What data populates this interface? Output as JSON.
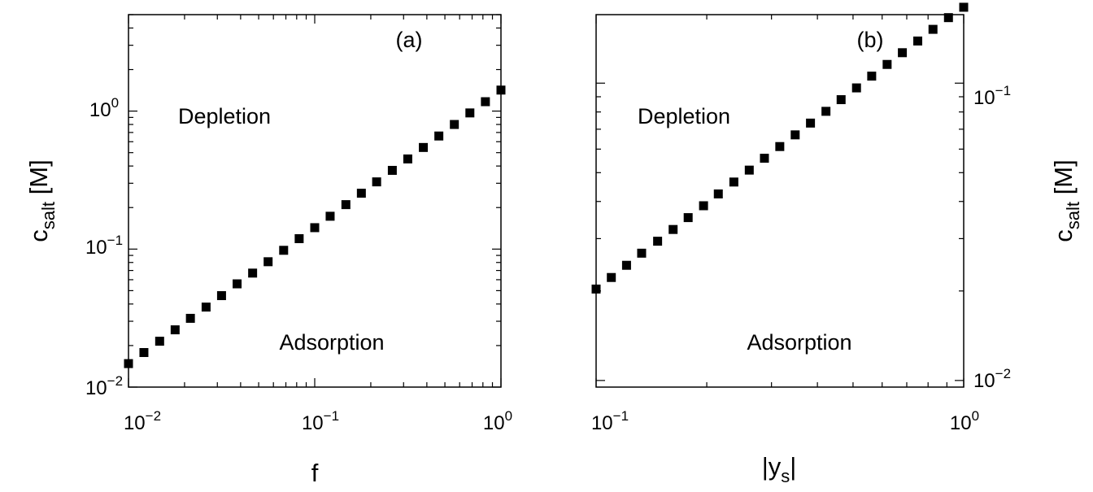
{
  "chart_data": [
    {
      "type": "scatter",
      "panel_label": "(a)",
      "xlabel": "f",
      "ylabel": "c_salt [M]",
      "ylabel_parts": {
        "main": "c",
        "sub": "salt",
        "unit": " [M]"
      },
      "x_scale": "log",
      "y_scale": "log",
      "xlim": [
        0.01,
        1
      ],
      "ylim": [
        0.01,
        5
      ],
      "x_ticks": [
        {
          "base": "10",
          "exp": "−2"
        },
        {
          "base": "10",
          "exp": "−1"
        },
        {
          "base": "10",
          "exp": "0"
        }
      ],
      "y_ticks": [
        {
          "base": "10",
          "exp": "−2"
        },
        {
          "base": "10",
          "exp": "−1"
        },
        {
          "base": "10",
          "exp": "0"
        }
      ],
      "annotations": [
        "Depletion",
        "Adsorption"
      ],
      "grid": false,
      "marker": "square",
      "color": "#000000",
      "x": [
        0.01,
        0.0121,
        0.0147,
        0.0178,
        0.0215,
        0.0261,
        0.0316,
        0.0383,
        0.0464,
        0.0562,
        0.0681,
        0.0825,
        0.1,
        0.121,
        0.147,
        0.178,
        0.215,
        0.261,
        0.316,
        0.383,
        0.464,
        0.562,
        0.681,
        0.825,
        1.0
      ],
      "y": [
        0.0148,
        0.0178,
        0.0215,
        0.026,
        0.0315,
        0.038,
        0.046,
        0.056,
        0.067,
        0.081,
        0.098,
        0.119,
        0.143,
        0.173,
        0.21,
        0.254,
        0.307,
        0.372,
        0.45,
        0.545,
        0.66,
        0.8,
        0.97,
        1.17,
        1.42
      ]
    },
    {
      "type": "scatter",
      "panel_label": "(b)",
      "xlabel": "|y_s|",
      "xlabel_parts": {
        "left": "|y",
        "sub": "s",
        "right": "|"
      },
      "ylabel": "c_salt [M]",
      "ylabel_parts": {
        "main": "c",
        "sub": "salt",
        "unit": " [M]"
      },
      "x_scale": "log",
      "y_scale": "log",
      "y_axis_side": "right",
      "xlim": [
        0.1,
        1
      ],
      "ylim": [
        0.0095,
        0.17
      ],
      "x_ticks": [
        {
          "base": "10",
          "exp": "−1"
        },
        {
          "base": "10",
          "exp": "0"
        }
      ],
      "y_ticks": [
        {
          "base": "10",
          "exp": "−2"
        },
        {
          "base": "10",
          "exp": "−1"
        }
      ],
      "annotations": [
        "Depletion",
        "Adsorption"
      ],
      "grid": false,
      "marker": "square",
      "color": "#000000",
      "x": [
        0.1,
        0.11,
        0.121,
        0.133,
        0.147,
        0.162,
        0.178,
        0.196,
        0.215,
        0.237,
        0.261,
        0.287,
        0.316,
        0.348,
        0.383,
        0.422,
        0.464,
        0.511,
        0.562,
        0.619,
        0.681,
        0.75,
        0.825,
        0.909,
        1.0
      ],
      "y": [
        0.0203,
        0.0222,
        0.0244,
        0.0268,
        0.0294,
        0.0322,
        0.0353,
        0.0387,
        0.0424,
        0.0465,
        0.051,
        0.0559,
        0.0612,
        0.067,
        0.0734,
        0.0804,
        0.088,
        0.0964,
        0.1056,
        0.1156,
        0.1266,
        0.1386,
        0.1517,
        0.1661,
        0.18
      ]
    }
  ]
}
